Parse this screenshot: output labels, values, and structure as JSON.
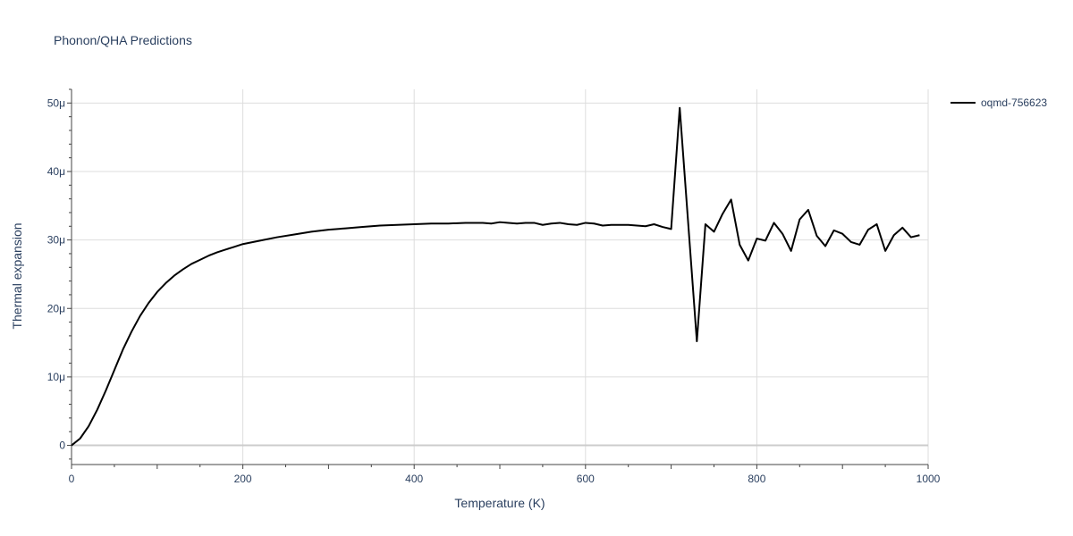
{
  "chart_data": {
    "type": "line",
    "title": "Phonon/QHA Predictions",
    "xlabel": "Temperature (K)",
    "ylabel": "Thermal expansion",
    "xlim": [
      0,
      1000
    ],
    "ylim": [
      -2.8e-06,
      5.2e-05
    ],
    "x_ticks": [
      0,
      200,
      400,
      600,
      800,
      1000
    ],
    "x_tick_labels": [
      "0",
      "200",
      "400",
      "600",
      "800",
      "1000"
    ],
    "y_ticks": [
      0,
      1e-05,
      2e-05,
      3e-05,
      4e-05,
      5e-05
    ],
    "y_tick_labels": [
      "0",
      "10μ",
      "20μ",
      "30μ",
      "40μ",
      "50μ"
    ],
    "grid": true,
    "legend_position": "top-right",
    "series": [
      {
        "name": "oqmd-756623",
        "color": "#000000",
        "x": [
          0,
          10,
          20,
          30,
          40,
          50,
          60,
          70,
          80,
          90,
          100,
          110,
          120,
          130,
          140,
          150,
          160,
          170,
          180,
          190,
          200,
          220,
          240,
          260,
          280,
          300,
          320,
          340,
          360,
          380,
          400,
          420,
          440,
          460,
          480,
          490,
          500,
          510,
          520,
          530,
          540,
          550,
          560,
          570,
          580,
          590,
          600,
          610,
          620,
          630,
          640,
          650,
          660,
          670,
          680,
          690,
          700,
          710,
          730,
          740,
          750,
          760,
          770,
          780,
          790,
          800,
          810,
          820,
          830,
          840,
          850,
          860,
          870,
          880,
          890,
          900,
          910,
          920,
          930,
          940,
          950,
          960,
          970,
          980,
          990
        ],
        "y": [
          0,
          1e-06,
          2.8e-06,
          5.2e-06,
          8e-06,
          1.1e-05,
          1.4e-05,
          1.66e-05,
          1.89e-05,
          2.08e-05,
          2.24e-05,
          2.37e-05,
          2.48e-05,
          2.57e-05,
          2.65e-05,
          2.71e-05,
          2.77e-05,
          2.82e-05,
          2.86e-05,
          2.9e-05,
          2.94e-05,
          2.99e-05,
          3.04e-05,
          3.08e-05,
          3.12e-05,
          3.15e-05,
          3.17e-05,
          3.19e-05,
          3.21e-05,
          3.22e-05,
          3.23e-05,
          3.24e-05,
          3.24e-05,
          3.25e-05,
          3.25e-05,
          3.24e-05,
          3.26e-05,
          3.25e-05,
          3.24e-05,
          3.25e-05,
          3.25e-05,
          3.22e-05,
          3.24e-05,
          3.25e-05,
          3.23e-05,
          3.22e-05,
          3.25e-05,
          3.24e-05,
          3.21e-05,
          3.22e-05,
          3.22e-05,
          3.22e-05,
          3.21e-05,
          3.2e-05,
          3.23e-05,
          3.19e-05,
          3.16e-05,
          4.93e-05,
          1.52e-05,
          3.23e-05,
          3.12e-05,
          3.38e-05,
          3.59e-05,
          2.93e-05,
          2.7e-05,
          3.02e-05,
          2.99e-05,
          3.25e-05,
          3.09e-05,
          2.84e-05,
          3.3e-05,
          3.44e-05,
          3.06e-05,
          2.91e-05,
          3.14e-05,
          3.09e-05,
          2.97e-05,
          2.93e-05,
          3.15e-05,
          3.23e-05,
          2.84e-05,
          3.07e-05,
          3.18e-05,
          3.04e-05,
          3.07e-05
        ]
      }
    ]
  }
}
